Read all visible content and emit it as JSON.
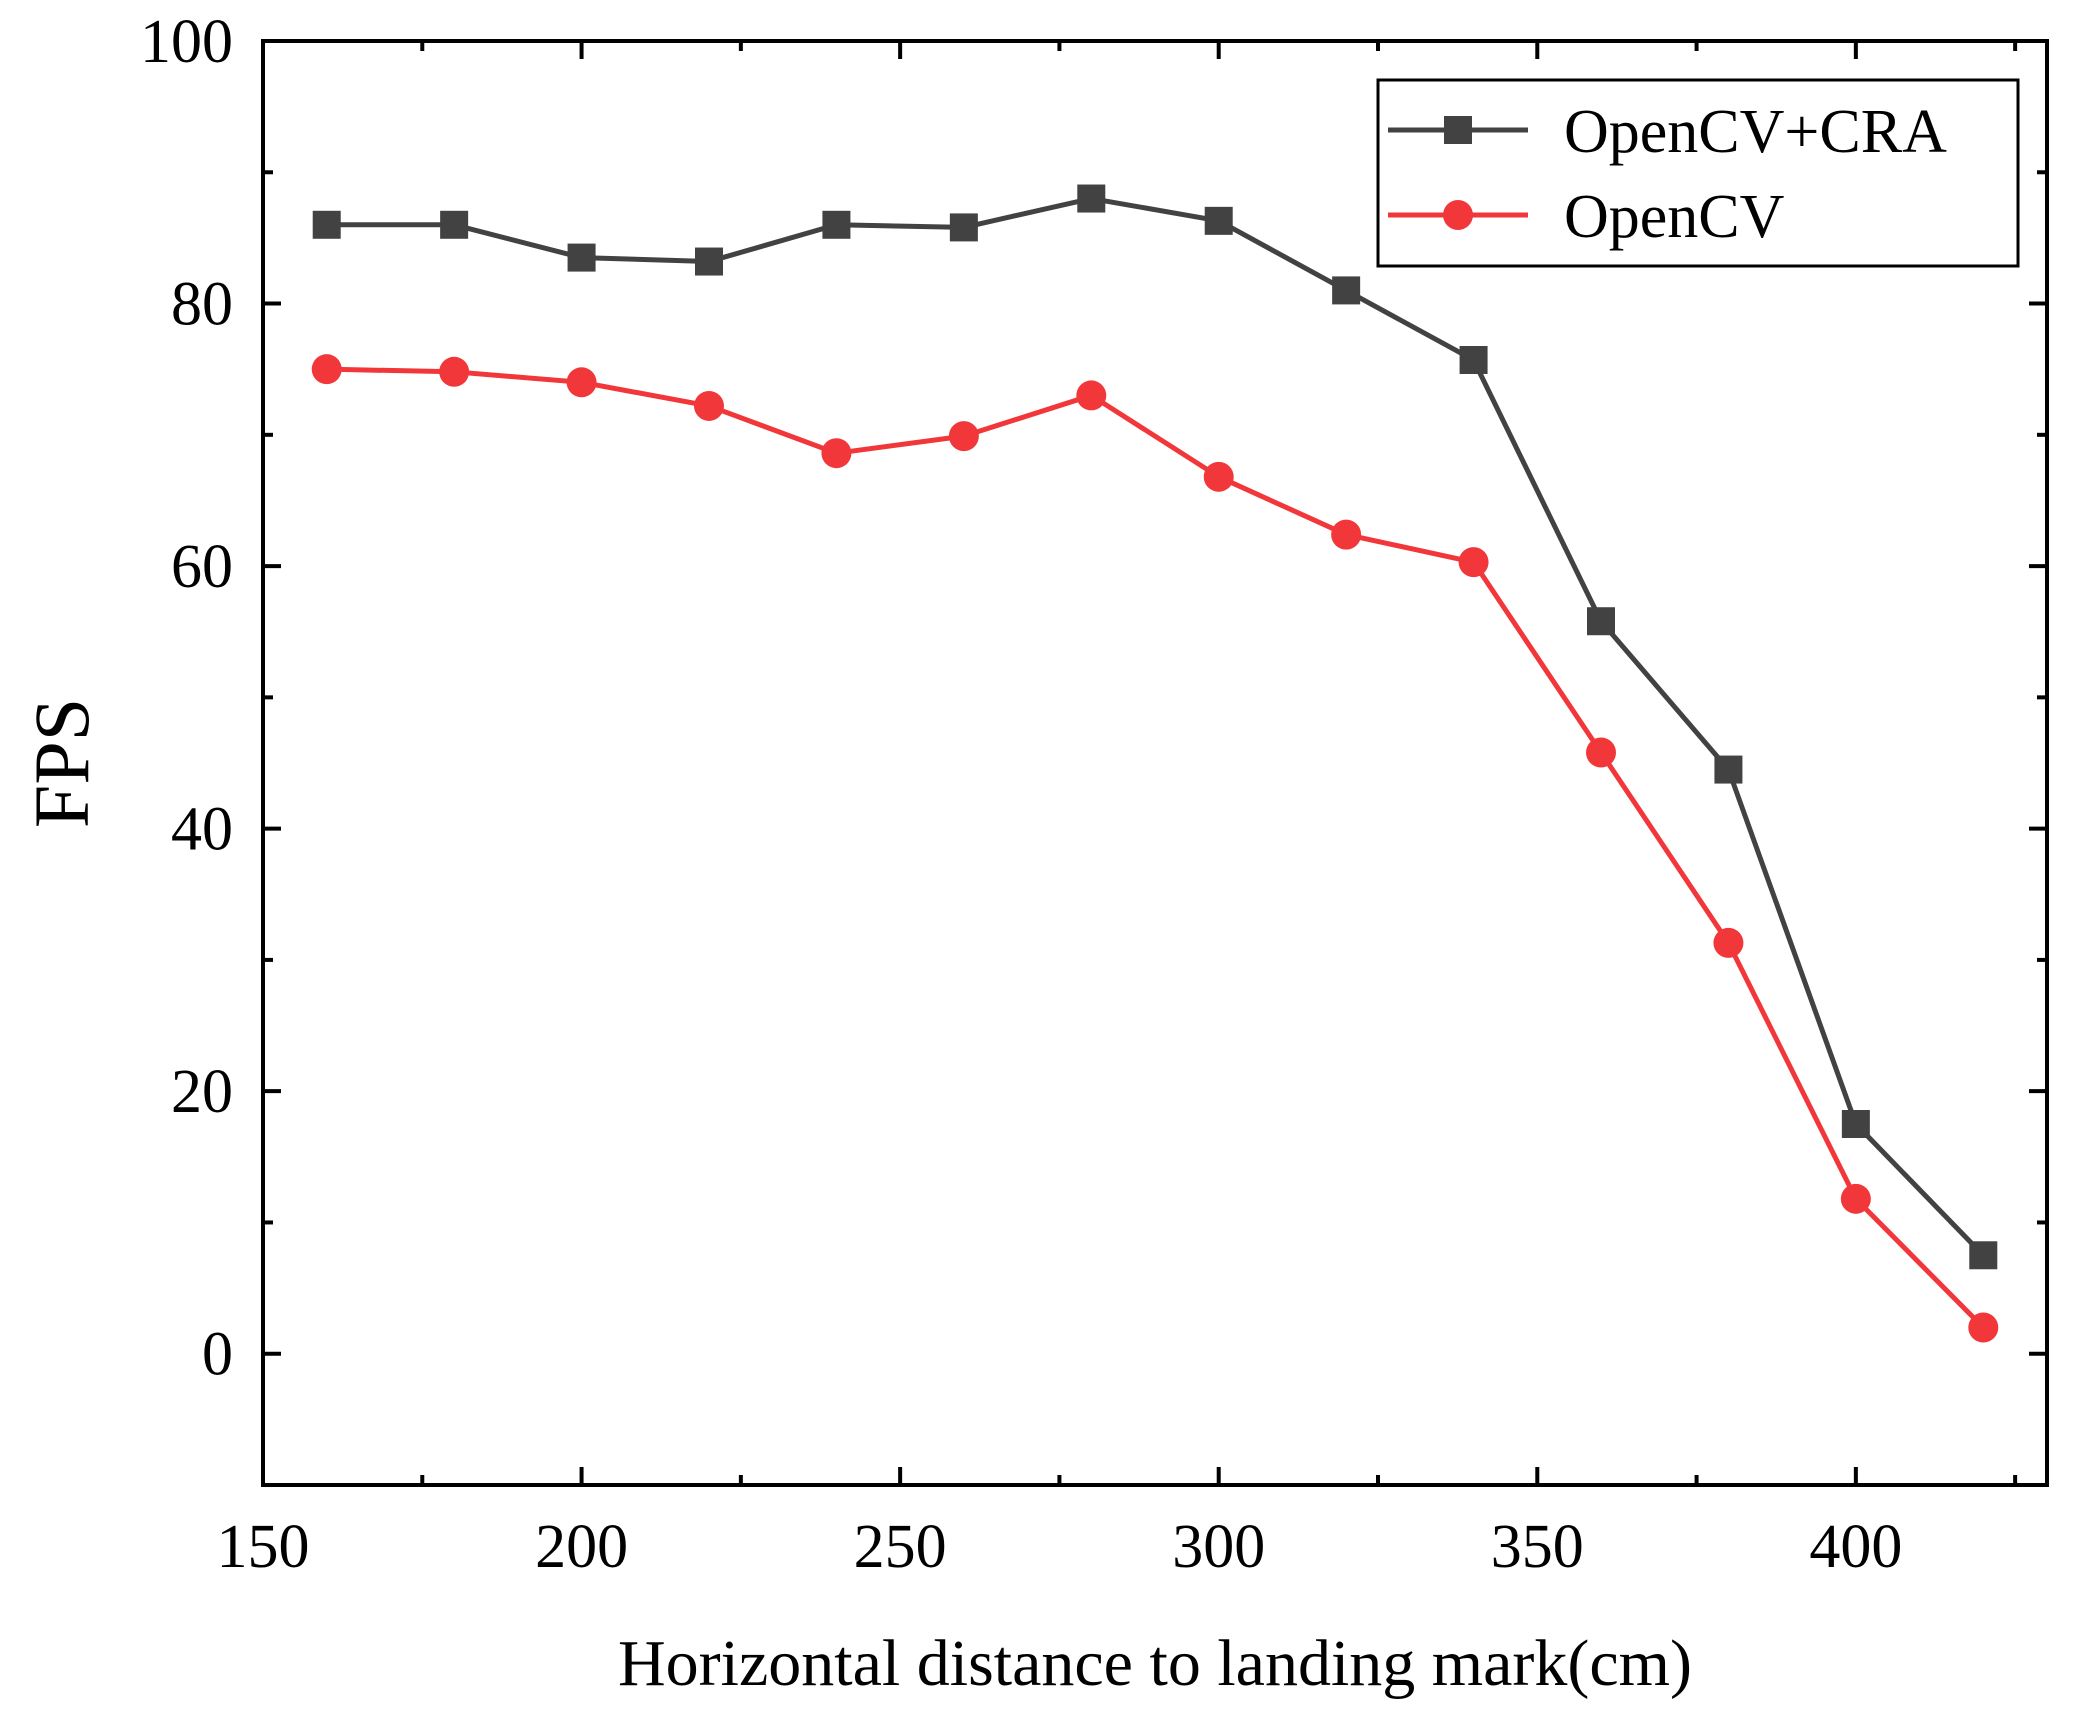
{
  "chart_data": {
    "type": "line",
    "title": "",
    "xlabel": "Horizontal distance to landing mark(cm)",
    "ylabel": "FPS",
    "xlim": [
      150,
      430
    ],
    "ylim": [
      -10,
      100
    ],
    "xticks": [
      150,
      200,
      250,
      300,
      350,
      400
    ],
    "xminor": [
      175,
      225,
      275,
      325,
      375,
      425
    ],
    "yticks": [
      0,
      20,
      40,
      60,
      80,
      100
    ],
    "yminor": [
      10,
      30,
      50,
      70,
      90
    ],
    "legend_position": "top-right",
    "x": [
      160,
      180,
      200,
      220,
      240,
      260,
      280,
      300,
      320,
      340,
      360,
      380,
      400,
      420
    ],
    "series": [
      {
        "name": "OpenCV+CRA",
        "color": "#424242",
        "marker": "square",
        "values": [
          86,
          86,
          83.5,
          83.2,
          86,
          85.8,
          88,
          86.3,
          81,
          75.7,
          55.8,
          44.5,
          17.5,
          7.5
        ]
      },
      {
        "name": "OpenCV",
        "color": "#f2373a",
        "marker": "circle",
        "values": [
          75,
          74.8,
          74,
          72.2,
          68.6,
          69.9,
          73,
          66.8,
          62.4,
          60.3,
          45.8,
          31.3,
          11.8,
          2
        ]
      }
    ]
  }
}
